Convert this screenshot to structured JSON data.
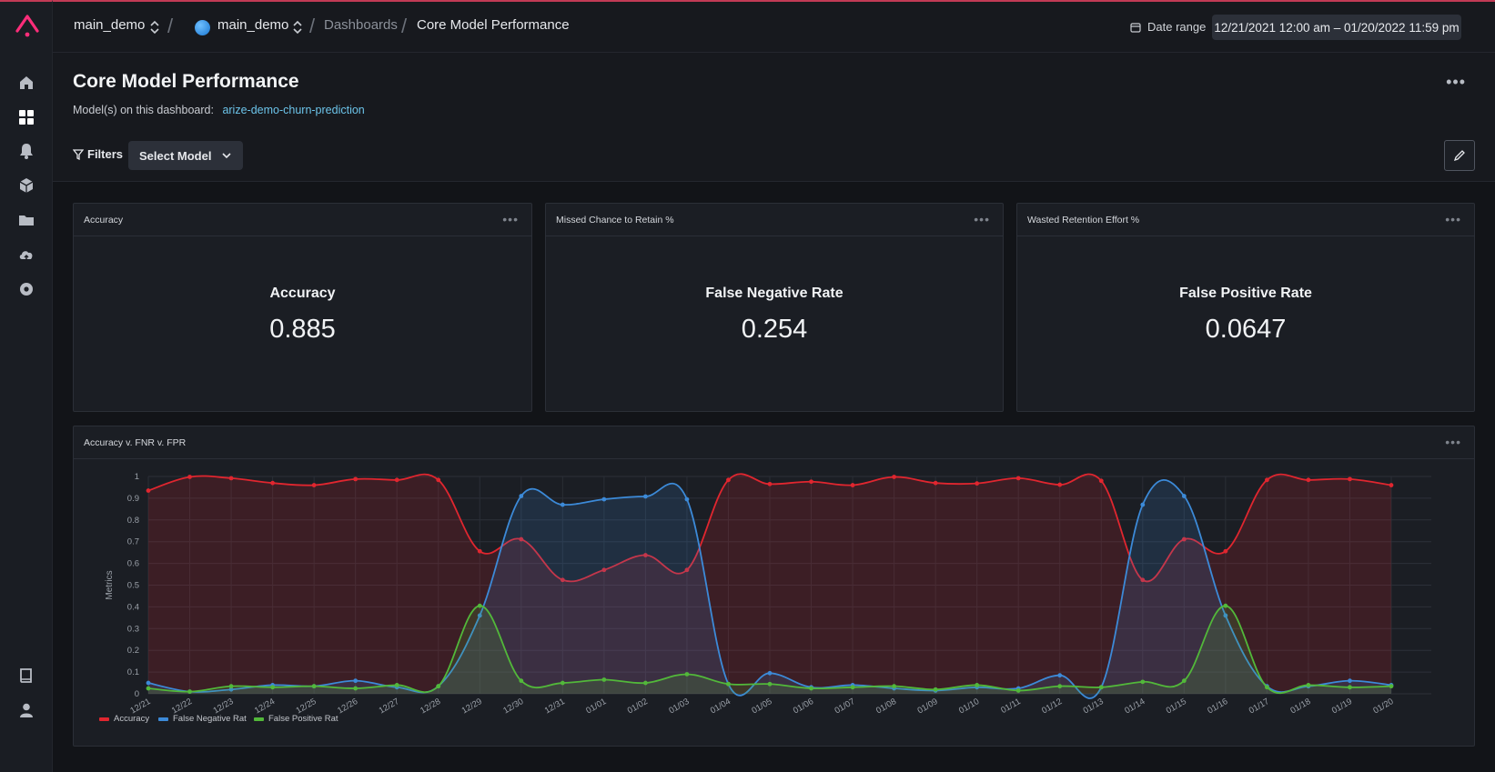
{
  "topbar": {
    "org": "main_demo",
    "space": "main_demo",
    "section": "Dashboards",
    "page": "Core Model Performance",
    "date_label": "Date range",
    "date_value": "12/21/2021 12:00 am – 01/20/2022 11:59 pm"
  },
  "sidebar": {
    "items": [
      "home-icon",
      "dashboards-icon",
      "alerts-icon",
      "models-icon",
      "folder-icon",
      "upload-icon",
      "settings-icon",
      "docs-icon",
      "user-icon"
    ]
  },
  "header": {
    "title": "Core Model Performance",
    "models_label": "Model(s) on this dashboard:",
    "model_link": "arize-demo-churn-prediction",
    "filters_label": "Filters",
    "select_model_label": "Select Model"
  },
  "cards": [
    {
      "title": "Accuracy",
      "metric": "Accuracy",
      "value": "0.885"
    },
    {
      "title": "Missed Chance to Retain %",
      "metric": "False Negative Rate",
      "value": "0.254"
    },
    {
      "title": "Wasted Retention Effort %",
      "metric": "False Positive Rate",
      "value": "0.0647"
    }
  ],
  "chart_card": {
    "title": "Accuracy v. FNR v. FPR"
  },
  "chart_data": {
    "type": "area",
    "ylabel": "Metrics",
    "ylim": [
      0,
      1
    ],
    "yticks": [
      "0",
      "0.1",
      "0.2",
      "0.3",
      "0.4",
      "0.5",
      "0.6",
      "0.7",
      "0.8",
      "0.9",
      "1"
    ],
    "categories": [
      "12/21",
      "12/22",
      "12/23",
      "12/24",
      "12/25",
      "12/26",
      "12/27",
      "12/28",
      "12/29",
      "12/30",
      "12/31",
      "01/01",
      "01/02",
      "01/03",
      "01/04",
      "01/05",
      "01/06",
      "01/07",
      "01/08",
      "01/09",
      "01/10",
      "01/11",
      "01/12",
      "01/13",
      "01/14",
      "01/15",
      "01/16",
      "01/17",
      "01/18",
      "01/19",
      "01/20"
    ],
    "legend_position": "bottom-left",
    "series": [
      {
        "name": "Accuracy",
        "color": "#e0262f",
        "values": [
          0.935,
          0.998,
          0.992,
          0.97,
          0.96,
          0.988,
          0.984,
          0.984,
          0.656,
          0.711,
          0.524,
          0.57,
          0.638,
          0.57,
          0.984,
          0.965,
          0.976,
          0.96,
          0.998,
          0.97,
          0.968,
          0.992,
          0.962,
          0.98,
          0.524,
          0.711,
          0.656,
          0.984,
          0.984,
          0.988,
          0.96
        ]
      },
      {
        "name": "False Negative Rat",
        "color": "#3c8ad8",
        "values": [
          0.05,
          0.01,
          0.02,
          0.04,
          0.035,
          0.06,
          0.03,
          0.035,
          0.36,
          0.91,
          0.87,
          0.895,
          0.908,
          0.895,
          0.045,
          0.095,
          0.03,
          0.04,
          0.025,
          0.015,
          0.03,
          0.025,
          0.085,
          0.03,
          0.87,
          0.91,
          0.36,
          0.035,
          0.035,
          0.06,
          0.04
        ]
      },
      {
        "name": "False Positive Rat",
        "color": "#52b83a",
        "values": [
          0.025,
          0.01,
          0.035,
          0.03,
          0.035,
          0.025,
          0.04,
          0.035,
          0.405,
          0.06,
          0.05,
          0.065,
          0.05,
          0.09,
          0.045,
          0.045,
          0.025,
          0.03,
          0.035,
          0.02,
          0.04,
          0.015,
          0.035,
          0.03,
          0.055,
          0.06,
          0.405,
          0.03,
          0.04,
          0.03,
          0.035
        ]
      }
    ]
  }
}
